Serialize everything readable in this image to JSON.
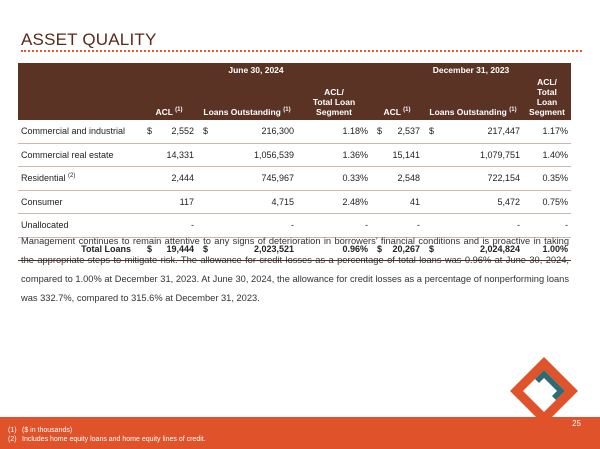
{
  "title": "ASSET QUALITY",
  "table": {
    "group_headers": [
      "June 30, 2024",
      "December 31, 2023"
    ],
    "col_acl": "ACL",
    "col_loans": "Loans Outstanding",
    "col_seg_line1": "ACL/",
    "col_seg_line2": "Total Loan",
    "col_seg_line3": "Segment",
    "sup1": "(1)",
    "sup2": "(2)",
    "rows": [
      {
        "label": "Commercial and industrial",
        "acl1_cur": "$",
        "acl1": "2,552",
        "loans1_cur": "$",
        "loans1": "216,300",
        "pct1": "1.18%",
        "acl2_cur": "$",
        "acl2": "2,537",
        "loans2_cur": "$",
        "loans2": "217,447",
        "pct2": "1.17%"
      },
      {
        "label": "Commercial real estate",
        "acl1_cur": "",
        "acl1": "14,331",
        "loans1_cur": "",
        "loans1": "1,056,539",
        "pct1": "1.36%",
        "acl2_cur": "",
        "acl2": "15,141",
        "loans2_cur": "",
        "loans2": "1,079,751",
        "pct2": "1.40%"
      },
      {
        "label": "Residential",
        "acl1_cur": "",
        "acl1": "2,444",
        "loans1_cur": "",
        "loans1": "745,967",
        "pct1": "0.33%",
        "acl2_cur": "",
        "acl2": "2,548",
        "loans2_cur": "",
        "loans2": "722,154",
        "pct2": "0.35%"
      },
      {
        "label": "Consumer",
        "acl1_cur": "",
        "acl1": "117",
        "loans1_cur": "",
        "loans1": "4,715",
        "pct1": "2.48%",
        "acl2_cur": "",
        "acl2": "41",
        "loans2_cur": "",
        "loans2": "5,472",
        "pct2": "0.75%"
      },
      {
        "label": "Unallocated",
        "acl1_cur": "",
        "acl1": "-",
        "loans1_cur": "",
        "loans1": "-",
        "pct1": "-",
        "acl2_cur": "",
        "acl2": "-",
        "loans2_cur": "",
        "loans2": "-",
        "pct2": "-"
      }
    ],
    "total": {
      "label": "Total Loans",
      "acl1_cur": "$",
      "acl1": "19,444",
      "loans1_cur": "$",
      "loans1": "2,023,521",
      "pct1": "0.96%",
      "acl2_cur": "$",
      "acl2": "20,267",
      "loans2_cur": "$",
      "loans2": "2,024,824",
      "pct2": "1.00%"
    }
  },
  "paragraph": "Management continues to remain attentive to any signs of deterioration in borrowers’ financial conditions and is proactive in taking the appropriate steps to mitigate risk. The allowance for credit losses as a percentage of total loans was 0.96% at June 30, 2024, compared to 1.00% at December 31, 2023. At June 30, 2024, the allowance for credit losses as a percentage of nonperforming loans was 332.7%, compared to 315.6% at December 31, 2023.",
  "page_number": "25",
  "footnotes": [
    {
      "num": "(1)",
      "text": "($ in thousands)"
    },
    {
      "num": "(2)",
      "text": "Includes home equity loans and home equity lines of credit."
    }
  ],
  "colors": {
    "accent": "#e0522a",
    "header_bg": "#5b3325",
    "logo_teal": "#2e6b74"
  }
}
